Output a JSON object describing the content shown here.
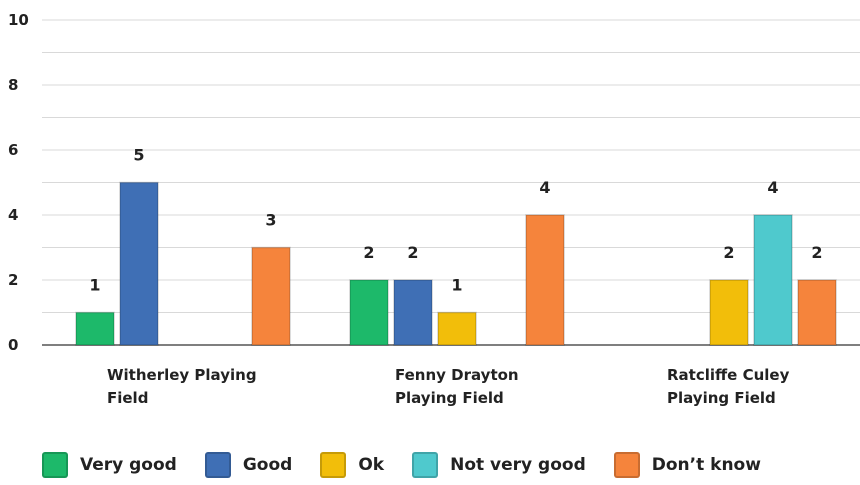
{
  "chart_data": {
    "type": "bar",
    "title": "",
    "xlabel": "",
    "ylabel": "",
    "ylim": [
      0,
      10
    ],
    "y_ticks": [
      "0",
      "2",
      "4",
      "6",
      "8",
      "10"
    ],
    "grid": true,
    "legend_position": "bottom",
    "categories": [
      [
        "Witherley Playing",
        "Field"
      ],
      [
        "Fenny Drayton",
        "Playing Field"
      ],
      [
        "Ratcliffe Culey",
        "Playing Field"
      ]
    ],
    "series": [
      {
        "name": "Very good",
        "color": "#1db96a",
        "values": [
          1,
          2,
          null
        ]
      },
      {
        "name": "Good",
        "color": "#3f6fb5",
        "values": [
          5,
          2,
          null
        ]
      },
      {
        "name": "Ok",
        "color": "#f2be0a",
        "values": [
          null,
          1,
          2
        ]
      },
      {
        "name": "Not very good",
        "color": "#4fc9cd",
        "values": [
          null,
          null,
          4
        ]
      },
      {
        "name": "Don’t know",
        "color": "#f5843c",
        "values": [
          3,
          4,
          2
        ]
      }
    ]
  }
}
